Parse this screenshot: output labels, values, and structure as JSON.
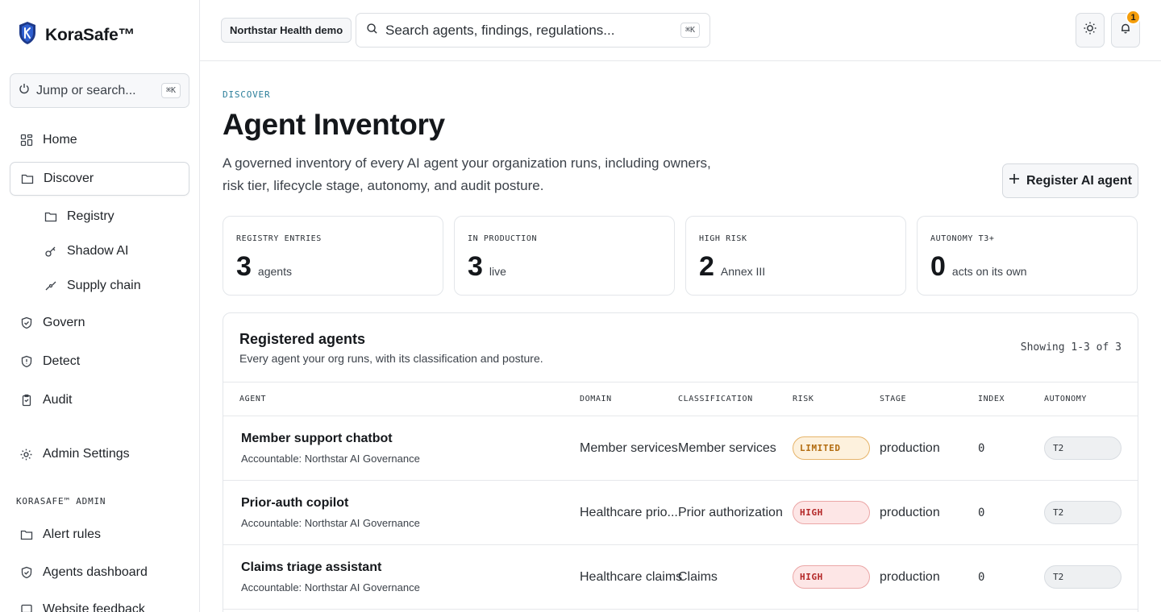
{
  "brand": {
    "name": "KoraSafe™"
  },
  "sidebar": {
    "jump_placeholder": "Jump or search...",
    "jump_shortcut": "⌘K",
    "items": [
      {
        "label": "Home",
        "icon": "grid-icon"
      },
      {
        "label": "Discover",
        "icon": "folder-icon",
        "active": true
      },
      {
        "label": "Registry",
        "icon": "folder-icon"
      },
      {
        "label": "Shadow AI",
        "icon": "key-icon"
      },
      {
        "label": "Supply chain",
        "icon": "chain-icon"
      },
      {
        "label": "Govern",
        "icon": "shield-check-icon"
      },
      {
        "label": "Detect",
        "icon": "shield-alert-icon"
      },
      {
        "label": "Audit",
        "icon": "clipboard-icon"
      },
      {
        "label": "Admin Settings",
        "icon": "gear-icon"
      }
    ],
    "admin_section_label": "KORASAFE™ ADMIN",
    "admin_items": [
      {
        "label": "Alert rules",
        "icon": "folder-icon"
      },
      {
        "label": "Agents dashboard",
        "icon": "shield-check-icon"
      },
      {
        "label": "Website feedback",
        "icon": "message-icon"
      }
    ]
  },
  "topbar": {
    "demo_badge": "Northstar Health demo",
    "search_placeholder": "Search agents, findings, regulations...",
    "search_shortcut": "⌘K",
    "notification_count": "1"
  },
  "page": {
    "eyebrow": "DISCOVER",
    "title": "Agent Inventory",
    "description": "A governed inventory of every AI agent your organization runs, including owners, risk tier, lifecycle stage, autonomy, and audit posture.",
    "register_button": "Register AI agent"
  },
  "stats": [
    {
      "label": "REGISTRY ENTRIES",
      "value": "3",
      "unit": "agents"
    },
    {
      "label": "IN PRODUCTION",
      "value": "3",
      "unit": "live"
    },
    {
      "label": "HIGH RISK",
      "value": "2",
      "unit": "Annex III"
    },
    {
      "label": "AUTONOMY T3+",
      "value": "0",
      "unit": "acts on its own"
    }
  ],
  "table": {
    "title": "Registered agents",
    "subtitle": "Every agent your org runs, with its classification and posture.",
    "count_text": "Showing 1-3 of 3",
    "columns": [
      "AGENT",
      "DOMAIN",
      "CLASSIFICATION",
      "RISK",
      "STAGE",
      "INDEX",
      "AUTONOMY"
    ],
    "rows": [
      {
        "name": "Member support chatbot",
        "accountable": "Accountable: Northstar AI Governance",
        "domain": "Member services",
        "classification": "Member services",
        "risk": "LIMITED",
        "stage": "production",
        "index": "0",
        "autonomy": "T2"
      },
      {
        "name": "Prior-auth copilot",
        "accountable": "Accountable: Northstar AI Governance",
        "domain": "Healthcare prio...",
        "classification": "Prior authorization",
        "risk": "HIGH",
        "stage": "production",
        "index": "0",
        "autonomy": "T2"
      },
      {
        "name": "Claims triage assistant",
        "accountable": "Accountable: Northstar AI Governance",
        "domain": "Healthcare claims",
        "classification": "Claims",
        "risk": "HIGH",
        "stage": "production",
        "index": "0",
        "autonomy": "T2"
      }
    ]
  },
  "colors": {
    "accent": "#2b7e9a",
    "limited": "#b26b0e",
    "high": "#b32626",
    "notification": "#f59e0b"
  }
}
